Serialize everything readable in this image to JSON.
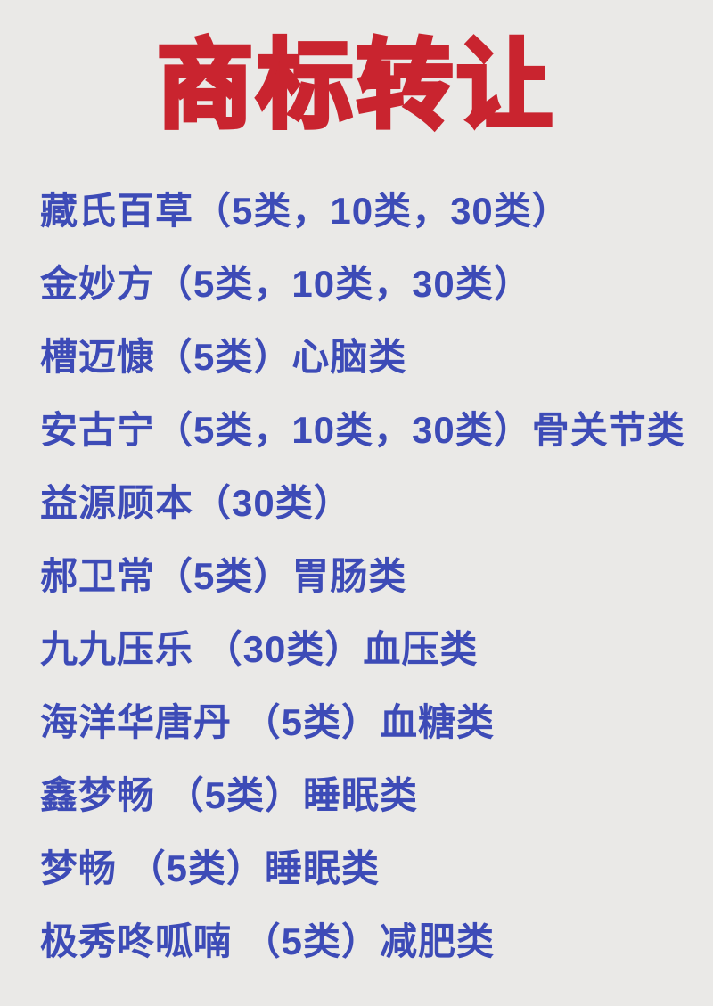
{
  "page": {
    "background_color": "#EAE9E7"
  },
  "title": {
    "text": "商标转让",
    "color": "#C9242F"
  },
  "list": {
    "text_color": "#3D4BB7",
    "items": [
      {
        "brand": "藏氏百草",
        "classes": [
          "5类",
          "10类",
          "30类"
        ],
        "category": "",
        "text": "藏氏百草（5类，10类，30类）"
      },
      {
        "brand": "金妙方",
        "classes": [
          "5类",
          "10类",
          "30类"
        ],
        "category": "",
        "text": "金妙方（5类，10类，30类）"
      },
      {
        "brand": "槽迈慷",
        "classes": [
          "5类"
        ],
        "category": "心脑类",
        "text": "槽迈慷（5类）心脑类"
      },
      {
        "brand": "安古宁",
        "classes": [
          "5类",
          "10类",
          "30类"
        ],
        "category": "骨关节类",
        "text": "安古宁（5类，10类，30类）骨关节类"
      },
      {
        "brand": "益源顾本",
        "classes": [
          "30类"
        ],
        "category": "",
        "text": "益源顾本（30类）"
      },
      {
        "brand": "郝卫常",
        "classes": [
          "5类"
        ],
        "category": "胃肠类",
        "text": "郝卫常（5类）胃肠类"
      },
      {
        "brand": "九九压乐",
        "classes": [
          "30类"
        ],
        "category": "血压类",
        "text": "九九压乐 （30类）血压类"
      },
      {
        "brand": "海洋华唐丹",
        "classes": [
          "5类"
        ],
        "category": "血糖类",
        "text": "海洋华唐丹 （5类）血糖类"
      },
      {
        "brand": "鑫梦畅",
        "classes": [
          "5类"
        ],
        "category": "睡眠类",
        "text": "鑫梦畅 （5类）睡眠类"
      },
      {
        "brand": "梦畅",
        "classes": [
          "5类"
        ],
        "category": "睡眠类",
        "text": "梦畅 （5类）睡眠类"
      },
      {
        "brand": "极秀咚呱喃",
        "classes": [
          "5类"
        ],
        "category": "减肥类",
        "text": "极秀咚呱喃 （5类）减肥类"
      }
    ]
  }
}
